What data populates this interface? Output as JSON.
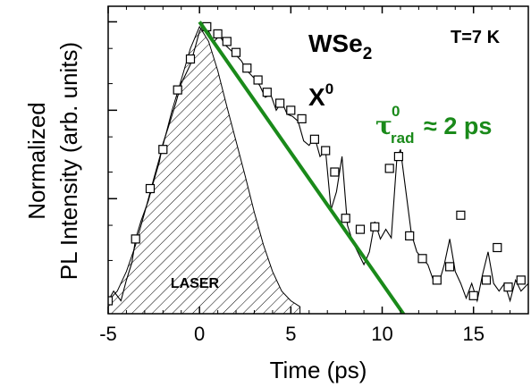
{
  "chart_data": {
    "type": "line",
    "title": "",
    "xlabel": "Time (ps)",
    "ylabel_line1": "Normalized",
    "ylabel_line2": "PL Intensity (arb. units)",
    "xlim": [
      -5,
      18
    ],
    "ylim": [
      0.0005,
      1.5
    ],
    "y_scale": "log",
    "xticks": [
      -5,
      0,
      5,
      10,
      15
    ],
    "yticks_major": [
      0.01,
      0.1,
      1
    ],
    "yticks_minor": [
      0.002,
      0.005,
      0.02,
      0.05,
      0.2,
      0.5
    ],
    "grid": false,
    "colors": {
      "fit": "#1a8a1a",
      "fit_label": "#1a8a1a",
      "trace": "#000000"
    },
    "annotations": {
      "material": "WSe",
      "material_sub": "2",
      "exciton": "X",
      "exciton_sup": "0",
      "temperature": "T=7 K",
      "tau_symbol": "τ",
      "tau_sup": "0",
      "tau_sub": "rad",
      "tau_value": "≈ 2 ps",
      "laser_label": "LASER"
    },
    "series": [
      {
        "kind": "data_trace",
        "x": [
          -5.0,
          -4.7,
          -4.3,
          -4.0,
          -3.7,
          -3.5,
          -3.2,
          -2.8,
          -2.5,
          -2.2,
          -2.0,
          -1.7,
          -1.3,
          -1.0,
          -0.5,
          -0.2,
          0.0,
          0.2,
          0.5,
          0.8,
          1.1,
          1.4,
          1.7,
          2.0,
          2.3,
          2.6,
          3.0,
          3.3,
          3.6,
          3.9,
          4.2,
          4.5,
          4.8,
          5.1,
          5.4,
          5.7,
          6.0,
          6.3,
          6.6,
          6.9,
          7.2,
          7.5,
          7.8,
          8.1,
          8.4,
          8.7,
          9.0,
          9.3,
          9.6,
          9.9,
          10.2,
          10.5,
          10.8,
          11.0,
          11.3,
          11.6,
          11.9,
          12.2,
          12.5,
          12.8,
          13.1,
          13.4,
          13.7,
          14.0,
          14.3,
          14.6,
          14.9,
          15.2,
          15.5,
          15.8,
          16.1,
          16.4,
          16.7,
          17.0,
          17.3,
          17.6,
          18.0
        ],
        "y": [
          0.0007,
          0.0009,
          0.0007,
          0.0012,
          0.0019,
          0.0035,
          0.0056,
          0.0095,
          0.016,
          0.026,
          0.042,
          0.065,
          0.12,
          0.2,
          0.33,
          0.55,
          0.78,
          0.92,
          0.78,
          0.6,
          0.7,
          0.55,
          0.48,
          0.42,
          0.36,
          0.28,
          0.23,
          0.19,
          0.14,
          0.15,
          0.1,
          0.125,
          0.09,
          0.085,
          0.075,
          0.045,
          0.04,
          0.05,
          0.03,
          0.035,
          0.0075,
          0.012,
          0.03,
          0.005,
          0.0032,
          0.0024,
          0.0018,
          0.0025,
          0.0055,
          0.0035,
          0.0045,
          0.0036,
          0.028,
          0.036,
          0.012,
          0.004,
          0.0025,
          0.0021,
          0.0018,
          0.0012,
          0.0011,
          0.0018,
          0.0035,
          0.0015,
          0.0011,
          0.00075,
          0.0011,
          0.0007,
          0.0014,
          0.0025,
          0.0011,
          0.0009,
          0.0011,
          0.0007,
          0.0012,
          0.0009,
          0.0011
        ]
      },
      {
        "kind": "data_markers",
        "x": [
          -5.0,
          -3.5,
          -2.7,
          -2.0,
          -1.2,
          -0.5,
          0.4,
          1.0,
          1.5,
          2.0,
          2.6,
          3.2,
          3.7,
          4.4,
          5.0,
          5.6,
          6.3,
          6.9,
          7.4,
          8.0,
          8.8,
          9.6,
          10.4,
          10.9,
          11.5,
          12.2,
          13.0,
          13.7,
          14.3,
          15.0,
          15.7,
          16.3,
          16.9,
          17.6
        ],
        "y": [
          0.0007,
          0.0035,
          0.013,
          0.036,
          0.17,
          0.38,
          0.88,
          0.73,
          0.6,
          0.45,
          0.3,
          0.22,
          0.16,
          0.12,
          0.1,
          0.08,
          0.047,
          0.035,
          0.02,
          0.006,
          0.0045,
          0.0048,
          0.022,
          0.03,
          0.0038,
          0.0021,
          0.0012,
          0.0017,
          0.0065,
          0.0008,
          0.0012,
          0.0028,
          0.001,
          0.0012
        ]
      },
      {
        "kind": "laser",
        "x": [
          -5.0,
          -4.5,
          -4.0,
          -3.5,
          -3.0,
          -2.5,
          -2.0,
          -1.5,
          -1.0,
          -0.5,
          0.0,
          0.5,
          1.0,
          1.5,
          2.0,
          2.5,
          3.0,
          3.5,
          4.0,
          4.5,
          5.0,
          5.5
        ],
        "y": [
          0.0007,
          0.0009,
          0.0015,
          0.003,
          0.007,
          0.017,
          0.04,
          0.1,
          0.22,
          0.5,
          0.88,
          0.6,
          0.28,
          0.11,
          0.045,
          0.018,
          0.007,
          0.003,
          0.0015,
          0.0009,
          0.0007,
          0.0006
        ]
      },
      {
        "kind": "fit",
        "x": [
          0.0,
          11.6
        ],
        "y": [
          1.0,
          0.00037
        ]
      }
    ]
  }
}
